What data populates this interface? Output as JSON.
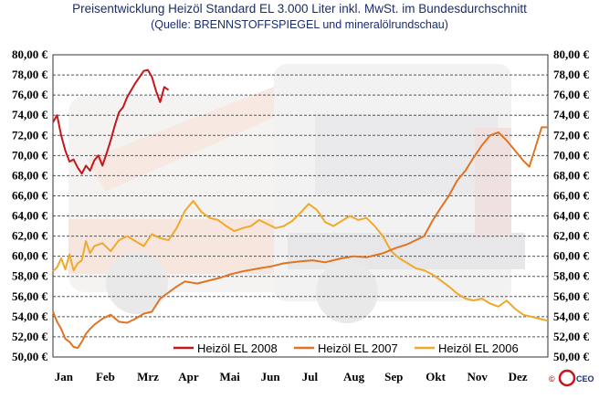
{
  "title": "Preisentwicklung Heizöl Standard EL 3.000 Liter inkl. MwSt. im Bundesdurchschnitt",
  "subtitle": "(Quelle: BRENNSTOFFSPIEGEL und mineralölrundschau)",
  "copyright": {
    "symbol": "©",
    "logo_text": "CEO"
  },
  "chart_data": {
    "type": "line",
    "title": "Preisentwicklung Heizöl Standard EL 3.000 Liter inkl. MwSt. im Bundesdurchschnitt",
    "x_axis": {
      "type": "month",
      "labels": [
        "Jan",
        "Feb",
        "Mrz",
        "Apr",
        "Mai",
        "Jun",
        "Jul",
        "Aug",
        "Sep",
        "Okt",
        "Nov",
        "Dez"
      ],
      "range": [
        1,
        13
      ]
    },
    "y_axis": {
      "min": 50,
      "max": 80,
      "step": 2,
      "format": "€ with 2 decimals, comma separator",
      "labels": [
        "50,00 €",
        "52,00 €",
        "54,00 €",
        "56,00 €",
        "58,00 €",
        "60,00 €",
        "62,00 €",
        "64,00 €",
        "66,00 €",
        "68,00 €",
        "70,00 €",
        "72,00 €",
        "74,00 €",
        "76,00 €",
        "78,00 €",
        "80,00 €"
      ],
      "both_sides": true
    },
    "grid": {
      "horizontal": true,
      "style": "dashed",
      "vertical": false
    },
    "legend_position": "bottom-right",
    "series": [
      {
        "name": "Heizöl EL 2008",
        "color": "#c4161c",
        "points": [
          [
            1.0,
            73.3
          ],
          [
            1.1,
            74.0
          ],
          [
            1.2,
            72.0
          ],
          [
            1.3,
            70.5
          ],
          [
            1.4,
            69.4
          ],
          [
            1.5,
            69.6
          ],
          [
            1.6,
            68.8
          ],
          [
            1.7,
            68.2
          ],
          [
            1.8,
            69.0
          ],
          [
            1.9,
            68.5
          ],
          [
            2.0,
            69.5
          ],
          [
            2.1,
            70.0
          ],
          [
            2.2,
            69.0
          ],
          [
            2.3,
            70.2
          ],
          [
            2.4,
            71.5
          ],
          [
            2.5,
            73.0
          ],
          [
            2.6,
            74.3
          ],
          [
            2.7,
            74.8
          ],
          [
            2.8,
            75.8
          ],
          [
            2.9,
            76.5
          ],
          [
            3.0,
            77.2
          ],
          [
            3.1,
            77.8
          ],
          [
            3.2,
            78.4
          ],
          [
            3.3,
            78.5
          ],
          [
            3.4,
            77.8
          ],
          [
            3.5,
            76.4
          ],
          [
            3.6,
            75.3
          ],
          [
            3.7,
            76.8
          ],
          [
            3.8,
            76.5
          ]
        ]
      },
      {
        "name": "Heizöl EL 2007",
        "color": "#e07425",
        "points": [
          [
            1.0,
            54.5
          ],
          [
            1.1,
            53.5
          ],
          [
            1.2,
            52.8
          ],
          [
            1.3,
            51.8
          ],
          [
            1.4,
            51.5
          ],
          [
            1.5,
            51.0
          ],
          [
            1.6,
            50.9
          ],
          [
            1.7,
            51.5
          ],
          [
            1.8,
            52.3
          ],
          [
            1.9,
            52.8
          ],
          [
            2.0,
            53.2
          ],
          [
            2.2,
            53.8
          ],
          [
            2.4,
            54.2
          ],
          [
            2.6,
            53.5
          ],
          [
            2.8,
            53.4
          ],
          [
            3.0,
            53.8
          ],
          [
            3.2,
            54.3
          ],
          [
            3.4,
            54.5
          ],
          [
            3.6,
            55.8
          ],
          [
            3.8,
            56.4
          ],
          [
            4.0,
            57.0
          ],
          [
            4.2,
            57.5
          ],
          [
            4.5,
            57.3
          ],
          [
            4.8,
            57.6
          ],
          [
            5.0,
            57.8
          ],
          [
            5.3,
            58.2
          ],
          [
            5.6,
            58.5
          ],
          [
            6.0,
            58.8
          ],
          [
            6.3,
            59.0
          ],
          [
            6.6,
            59.3
          ],
          [
            7.0,
            59.5
          ],
          [
            7.3,
            59.6
          ],
          [
            7.6,
            59.4
          ],
          [
            8.0,
            59.8
          ],
          [
            8.3,
            60.0
          ],
          [
            8.6,
            59.9
          ],
          [
            9.0,
            60.3
          ],
          [
            9.3,
            60.8
          ],
          [
            9.6,
            61.2
          ],
          [
            10.0,
            62.0
          ],
          [
            10.2,
            63.5
          ],
          [
            10.4,
            64.8
          ],
          [
            10.6,
            66.0
          ],
          [
            10.8,
            67.5
          ],
          [
            11.0,
            68.5
          ],
          [
            11.2,
            69.8
          ],
          [
            11.4,
            71.0
          ],
          [
            11.6,
            72.0
          ],
          [
            11.8,
            72.3
          ],
          [
            12.0,
            71.5
          ],
          [
            12.2,
            70.5
          ],
          [
            12.4,
            69.5
          ],
          [
            12.55,
            68.9
          ],
          [
            12.7,
            70.8
          ],
          [
            12.85,
            72.8
          ],
          [
            13.0,
            72.8
          ]
        ]
      },
      {
        "name": "Heizöl EL 2006",
        "color": "#f0a92a",
        "points": [
          [
            1.0,
            58.5
          ],
          [
            1.1,
            58.9
          ],
          [
            1.2,
            59.8
          ],
          [
            1.3,
            58.7
          ],
          [
            1.4,
            60.2
          ],
          [
            1.5,
            58.6
          ],
          [
            1.6,
            59.3
          ],
          [
            1.7,
            59.6
          ],
          [
            1.8,
            61.5
          ],
          [
            1.9,
            60.3
          ],
          [
            2.0,
            61.0
          ],
          [
            2.2,
            61.3
          ],
          [
            2.4,
            60.5
          ],
          [
            2.6,
            61.6
          ],
          [
            2.8,
            62.0
          ],
          [
            3.0,
            61.5
          ],
          [
            3.2,
            61.0
          ],
          [
            3.4,
            62.2
          ],
          [
            3.6,
            61.8
          ],
          [
            3.8,
            61.6
          ],
          [
            4.0,
            62.8
          ],
          [
            4.2,
            64.5
          ],
          [
            4.4,
            65.5
          ],
          [
            4.6,
            64.4
          ],
          [
            4.8,
            63.8
          ],
          [
            5.0,
            63.6
          ],
          [
            5.2,
            63.0
          ],
          [
            5.4,
            62.5
          ],
          [
            5.6,
            62.8
          ],
          [
            5.8,
            63.0
          ],
          [
            6.0,
            63.6
          ],
          [
            6.2,
            63.2
          ],
          [
            6.4,
            62.8
          ],
          [
            6.6,
            63.0
          ],
          [
            6.8,
            63.5
          ],
          [
            7.0,
            64.3
          ],
          [
            7.2,
            65.2
          ],
          [
            7.4,
            64.6
          ],
          [
            7.6,
            63.4
          ],
          [
            7.8,
            63.0
          ],
          [
            8.0,
            63.5
          ],
          [
            8.2,
            64.0
          ],
          [
            8.4,
            63.6
          ],
          [
            8.6,
            63.8
          ],
          [
            8.8,
            63.0
          ],
          [
            9.0,
            62.0
          ],
          [
            9.2,
            60.5
          ],
          [
            9.4,
            59.8
          ],
          [
            9.6,
            59.3
          ],
          [
            9.8,
            58.8
          ],
          [
            10.0,
            58.6
          ],
          [
            10.2,
            58.2
          ],
          [
            10.4,
            57.6
          ],
          [
            10.6,
            57.0
          ],
          [
            10.8,
            56.3
          ],
          [
            11.0,
            55.8
          ],
          [
            11.2,
            55.6
          ],
          [
            11.4,
            55.8
          ],
          [
            11.6,
            55.3
          ],
          [
            11.8,
            55.0
          ],
          [
            12.0,
            55.6
          ],
          [
            12.2,
            54.8
          ],
          [
            12.4,
            54.2
          ],
          [
            12.6,
            54.0
          ],
          [
            12.8,
            53.8
          ],
          [
            13.0,
            53.6
          ]
        ]
      }
    ]
  }
}
